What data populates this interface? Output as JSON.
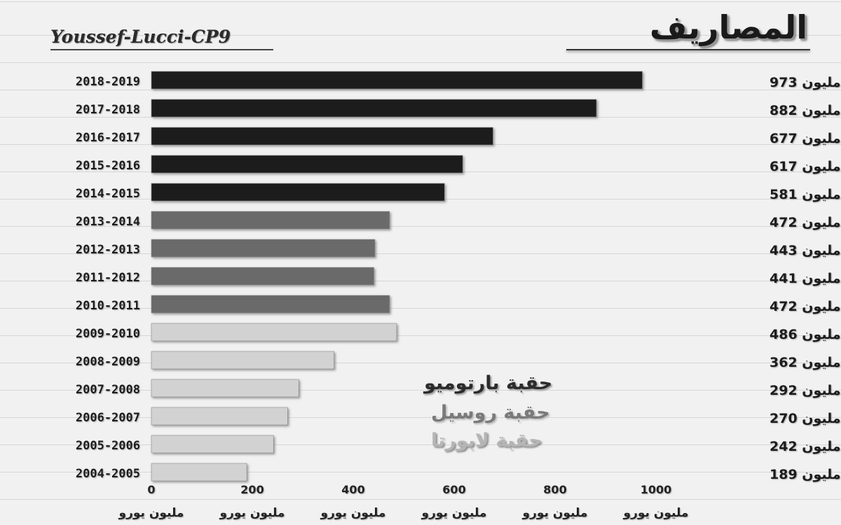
{
  "header": {
    "title": "المصاريف",
    "author": "Youssef-Lucci-CP9"
  },
  "legend": [
    {
      "label": "حقبة بارتوميو",
      "color": "#2b2b2b"
    },
    {
      "label": "حقبة روسيل",
      "color": "#7a7a7a"
    },
    {
      "label": "حقبة لابورتا",
      "color": "#c8c8c8"
    }
  ],
  "chart_data": {
    "type": "bar",
    "orientation": "horizontal",
    "title": "المصاريف",
    "categories": [
      "2018-2019",
      "2017-2018",
      "2016-2017",
      "2015-2016",
      "2014-2015",
      "2013-2014",
      "2012-2013",
      "2011-2012",
      "2010-2011",
      "2009-2010",
      "2008-2009",
      "2007-2008",
      "2006-2007",
      "2005-2006",
      "2004-2005"
    ],
    "values": [
      973,
      882,
      677,
      617,
      581,
      472,
      443,
      441,
      472,
      486,
      362,
      292,
      270,
      242,
      189
    ],
    "value_labels": [
      "مليون 973",
      "مليون 882",
      "مليون 677",
      "مليون 617",
      "مليون 581",
      "مليون 472",
      "مليون 443",
      "مليون 441",
      "مليون 472",
      "مليون 486",
      "مليون 362",
      "مليون 292",
      "مليون 270",
      "مليون 242",
      "مليون 189"
    ],
    "bar_colors": [
      "#1e1e1e",
      "#1e1e1e",
      "#1e1e1e",
      "#1e1e1e",
      "#1e1e1e",
      "#6a6a6a",
      "#6a6a6a",
      "#6a6a6a",
      "#6a6a6a",
      "#d2d2d2",
      "#d2d2d2",
      "#d2d2d2",
      "#d2d2d2",
      "#d2d2d2",
      "#d2d2d2"
    ],
    "x_ticks": [
      0,
      200,
      400,
      600,
      800,
      1000
    ],
    "x_tick_labels": [
      "0",
      "200",
      "400",
      "600",
      "800",
      "1000"
    ],
    "x_unit_label": "مليون يورو",
    "xlim": [
      0,
      1000
    ],
    "grid": false
  }
}
